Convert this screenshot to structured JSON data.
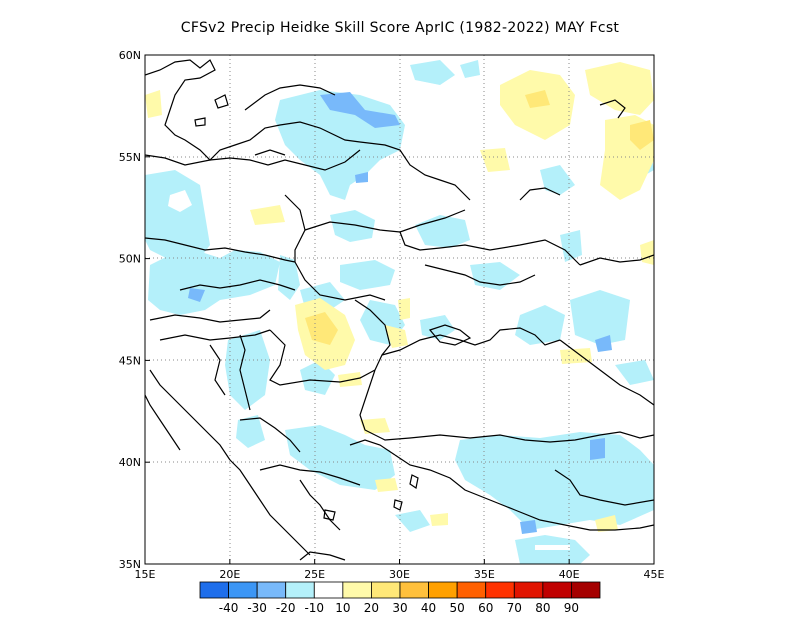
{
  "title": "CFSv2 Precip Heidke Skill Score AprIC (1982-2022) MAY Fcst",
  "map": {
    "lon_range": [
      15,
      45
    ],
    "lat_range": [
      35,
      60
    ],
    "x_ticks": [
      {
        "value": 15,
        "label": "15E"
      },
      {
        "value": 20,
        "label": "20E"
      },
      {
        "value": 25,
        "label": "25E"
      },
      {
        "value": 30,
        "label": "30E"
      },
      {
        "value": 35,
        "label": "35E"
      },
      {
        "value": 40,
        "label": "40E"
      },
      {
        "value": 45,
        "label": "45E"
      }
    ],
    "y_ticks": [
      {
        "value": 60,
        "label": "60N"
      },
      {
        "value": 55,
        "label": "55N"
      },
      {
        "value": 50,
        "label": "50N"
      },
      {
        "value": 45,
        "label": "45N"
      },
      {
        "value": 40,
        "label": "40N"
      },
      {
        "value": 35,
        "label": "35N"
      }
    ],
    "gridlines": "dotted"
  },
  "colorbar": {
    "colors": [
      "#1e6eeb",
      "#3c96f5",
      "#78b9fa",
      "#b4f0fa",
      "#ffffff",
      "#fffaaa",
      "#ffe878",
      "#ffc03c",
      "#ffa000",
      "#ff6000",
      "#ff3200",
      "#e11400",
      "#c00000",
      "#a50000"
    ],
    "labels": [
      "-40",
      "-30",
      "-20",
      "-10",
      "10",
      "20",
      "30",
      "40",
      "50",
      "60",
      "70",
      "80",
      "90"
    ]
  }
}
